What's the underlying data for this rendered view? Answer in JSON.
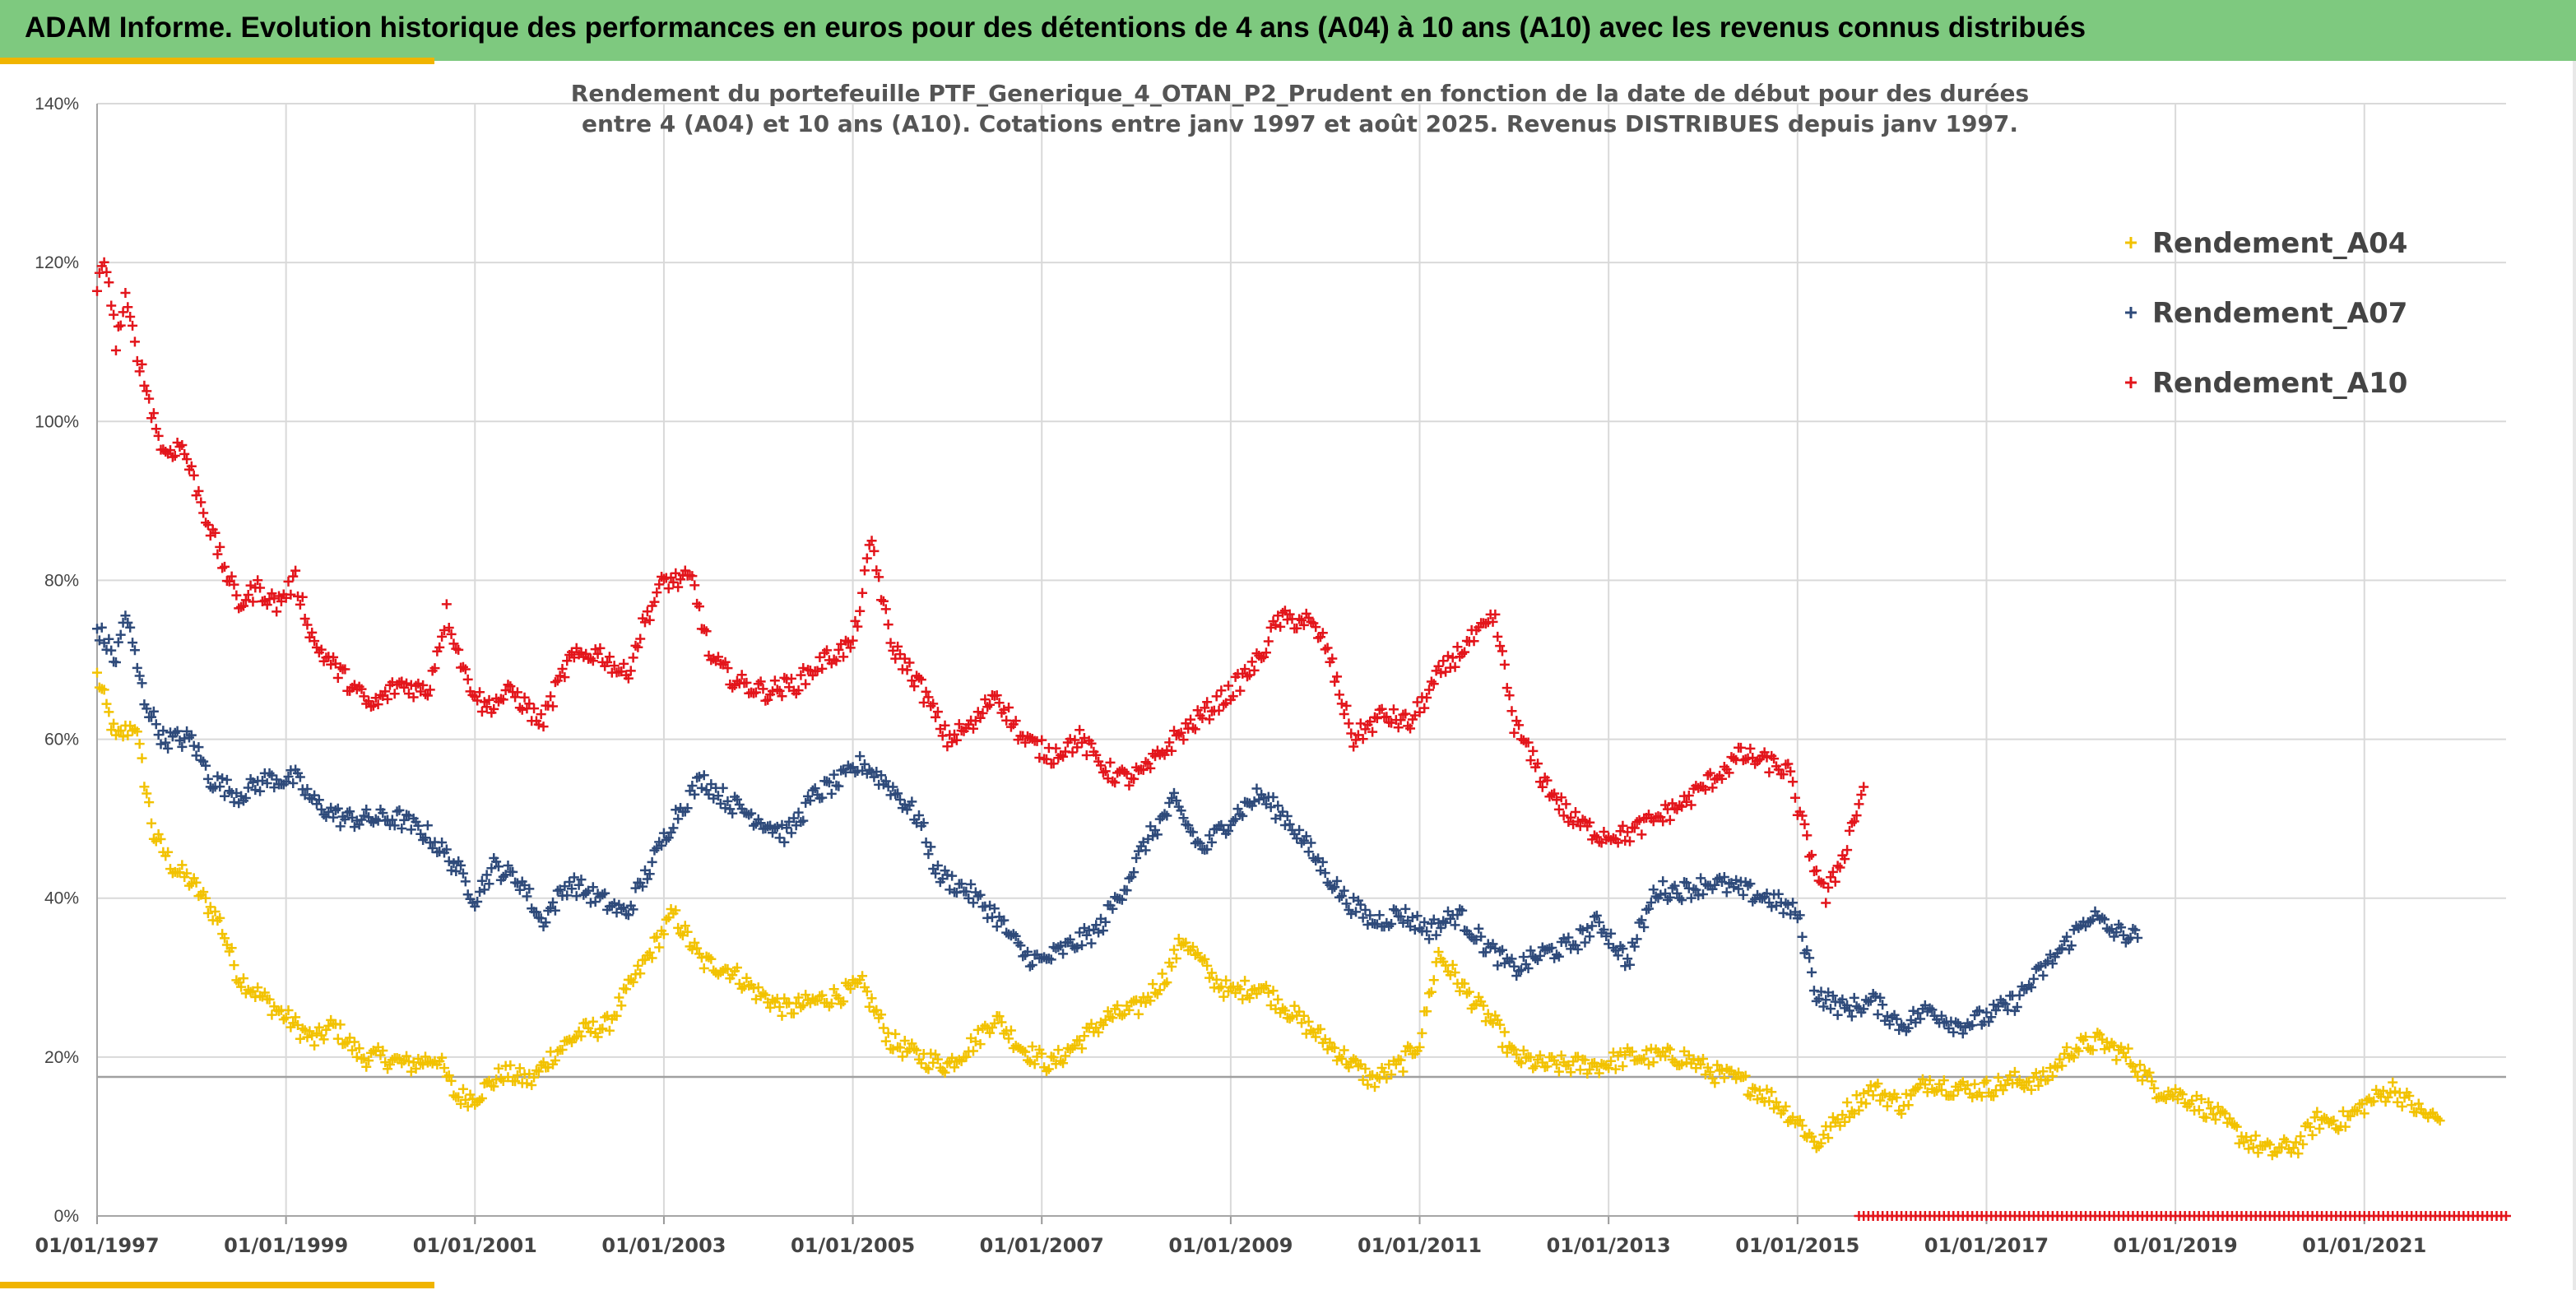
{
  "header": {
    "title": "ADAM Informe. Evolution historique des performances en euros pour des détentions de 4 ans (A04) à 10 ans (A10) avec les revenus connus distribués"
  },
  "chart_data": {
    "type": "scatter",
    "title_lines": [
      "Rendement du portefeuille PTF_Generique_4_OTAN_P2_Prudent  en fonction de la date de début pour des durées",
      "entre 4 (A04) et 10 ans (A10). Cotations entre janv 1997 et août 2025. Revenus DISTRIBUES depuis janv 1997."
    ],
    "xlabel": "",
    "ylabel": "",
    "ylim": [
      0,
      1.4
    ],
    "xlim": [
      1997.0,
      2022.5
    ],
    "y_ticks": [
      "0%",
      "20%",
      "40%",
      "60%",
      "80%",
      "100%",
      "120%",
      "140%"
    ],
    "x_ticks": [
      "01/01/1997",
      "01/01/1999",
      "01/01/2001",
      "01/01/2003",
      "01/01/2005",
      "01/01/2007",
      "01/01/2009",
      "01/01/2011",
      "01/01/2013",
      "01/01/2015",
      "01/01/2017",
      "01/01/2019",
      "01/01/2021"
    ],
    "reference_line_y": 0.175,
    "grid": true,
    "legend_position": "top-right",
    "marker": "+",
    "series": [
      {
        "name": "Rendement_A04",
        "color": "#f2c200",
        "points": [
          [
            1997.0,
            0.68
          ],
          [
            1997.2,
            0.6
          ],
          [
            1997.4,
            0.62
          ],
          [
            1997.6,
            0.48
          ],
          [
            1997.8,
            0.44
          ],
          [
            1998.0,
            0.42
          ],
          [
            1998.3,
            0.37
          ],
          [
            1998.5,
            0.3
          ],
          [
            1998.8,
            0.27
          ],
          [
            1999.0,
            0.25
          ],
          [
            1999.3,
            0.22
          ],
          [
            1999.5,
            0.24
          ],
          [
            1999.8,
            0.2
          ],
          [
            2000.0,
            0.2
          ],
          [
            2000.3,
            0.19
          ],
          [
            2000.6,
            0.2
          ],
          [
            2000.8,
            0.15
          ],
          [
            2001.0,
            0.15
          ],
          [
            2001.3,
            0.18
          ],
          [
            2001.6,
            0.17
          ],
          [
            2001.8,
            0.2
          ],
          [
            2002.1,
            0.23
          ],
          [
            2002.4,
            0.24
          ],
          [
            2002.7,
            0.3
          ],
          [
            2002.9,
            0.34
          ],
          [
            2003.1,
            0.38
          ],
          [
            2003.4,
            0.32
          ],
          [
            2003.7,
            0.31
          ],
          [
            2004.0,
            0.28
          ],
          [
            2004.3,
            0.26
          ],
          [
            2004.6,
            0.27
          ],
          [
            2004.9,
            0.28
          ],
          [
            2005.1,
            0.29
          ],
          [
            2005.4,
            0.22
          ],
          [
            2005.7,
            0.2
          ],
          [
            2006.0,
            0.19
          ],
          [
            2006.3,
            0.22
          ],
          [
            2006.5,
            0.25
          ],
          [
            2006.8,
            0.21
          ],
          [
            2007.1,
            0.19
          ],
          [
            2007.4,
            0.22
          ],
          [
            2007.7,
            0.25
          ],
          [
            2008.0,
            0.26
          ],
          [
            2008.3,
            0.3
          ],
          [
            2008.5,
            0.35
          ],
          [
            2008.8,
            0.3
          ],
          [
            2009.0,
            0.28
          ],
          [
            2009.3,
            0.29
          ],
          [
            2009.6,
            0.26
          ],
          [
            2009.9,
            0.23
          ],
          [
            2010.2,
            0.2
          ],
          [
            2010.5,
            0.17
          ],
          [
            2010.8,
            0.19
          ],
          [
            2011.0,
            0.22
          ],
          [
            2011.2,
            0.33
          ],
          [
            2011.5,
            0.28
          ],
          [
            2011.8,
            0.24
          ],
          [
            2012.0,
            0.2
          ],
          [
            2012.3,
            0.19
          ],
          [
            2012.6,
            0.19
          ],
          [
            2012.9,
            0.19
          ],
          [
            2013.2,
            0.2
          ],
          [
            2013.5,
            0.2
          ],
          [
            2013.8,
            0.2
          ],
          [
            2014.1,
            0.18
          ],
          [
            2014.4,
            0.17
          ],
          [
            2014.7,
            0.15
          ],
          [
            2015.0,
            0.12
          ],
          [
            2015.2,
            0.09
          ],
          [
            2015.5,
            0.13
          ],
          [
            2015.8,
            0.16
          ],
          [
            2016.1,
            0.14
          ],
          [
            2016.4,
            0.17
          ],
          [
            2016.7,
            0.16
          ],
          [
            2017.0,
            0.16
          ],
          [
            2017.3,
            0.17
          ],
          [
            2017.6,
            0.17
          ],
          [
            2017.9,
            0.21
          ],
          [
            2018.2,
            0.22
          ],
          [
            2018.5,
            0.2
          ],
          [
            2018.8,
            0.16
          ],
          [
            2019.1,
            0.15
          ],
          [
            2019.4,
            0.13
          ],
          [
            2019.7,
            0.1
          ],
          [
            2020.0,
            0.08
          ],
          [
            2020.3,
            0.09
          ],
          [
            2020.5,
            0.12
          ],
          [
            2020.8,
            0.12
          ],
          [
            2021.0,
            0.14
          ],
          [
            2021.3,
            0.16
          ],
          [
            2021.6,
            0.13
          ],
          [
            2021.8,
            0.12
          ]
        ]
      },
      {
        "name": "Rendement_A07",
        "color": "#2e4a7a",
        "points": [
          [
            1997.0,
            0.74
          ],
          [
            1997.2,
            0.7
          ],
          [
            1997.3,
            0.76
          ],
          [
            1997.5,
            0.65
          ],
          [
            1997.7,
            0.6
          ],
          [
            1998.0,
            0.6
          ],
          [
            1998.2,
            0.55
          ],
          [
            1998.5,
            0.53
          ],
          [
            1998.8,
            0.55
          ],
          [
            1999.1,
            0.55
          ],
          [
            1999.3,
            0.52
          ],
          [
            1999.6,
            0.5
          ],
          [
            1999.9,
            0.5
          ],
          [
            2000.2,
            0.5
          ],
          [
            2000.5,
            0.48
          ],
          [
            2000.8,
            0.44
          ],
          [
            2001.0,
            0.4
          ],
          [
            2001.2,
            0.44
          ],
          [
            2001.5,
            0.42
          ],
          [
            2001.7,
            0.37
          ],
          [
            2002.0,
            0.42
          ],
          [
            2002.3,
            0.4
          ],
          [
            2002.6,
            0.38
          ],
          [
            2002.9,
            0.45
          ],
          [
            2003.1,
            0.5
          ],
          [
            2003.4,
            0.55
          ],
          [
            2003.7,
            0.52
          ],
          [
            2004.0,
            0.5
          ],
          [
            2004.3,
            0.48
          ],
          [
            2004.6,
            0.53
          ],
          [
            2004.9,
            0.55
          ],
          [
            2005.1,
            0.57
          ],
          [
            2005.4,
            0.54
          ],
          [
            2005.7,
            0.5
          ],
          [
            2005.9,
            0.43
          ],
          [
            2006.2,
            0.41
          ],
          [
            2006.5,
            0.38
          ],
          [
            2006.8,
            0.33
          ],
          [
            2007.0,
            0.32
          ],
          [
            2007.3,
            0.34
          ],
          [
            2007.6,
            0.36
          ],
          [
            2007.9,
            0.42
          ],
          [
            2008.1,
            0.47
          ],
          [
            2008.4,
            0.52
          ],
          [
            2008.7,
            0.46
          ],
          [
            2009.0,
            0.5
          ],
          [
            2009.3,
            0.53
          ],
          [
            2009.6,
            0.5
          ],
          [
            2009.9,
            0.45
          ],
          [
            2010.2,
            0.4
          ],
          [
            2010.5,
            0.37
          ],
          [
            2010.8,
            0.38
          ],
          [
            2011.1,
            0.36
          ],
          [
            2011.4,
            0.38
          ],
          [
            2011.7,
            0.34
          ],
          [
            2012.0,
            0.31
          ],
          [
            2012.3,
            0.33
          ],
          [
            2012.6,
            0.34
          ],
          [
            2012.9,
            0.37
          ],
          [
            2013.2,
            0.32
          ],
          [
            2013.5,
            0.41
          ],
          [
            2013.8,
            0.41
          ],
          [
            2014.1,
            0.42
          ],
          [
            2014.4,
            0.41
          ],
          [
            2014.7,
            0.4
          ],
          [
            2015.0,
            0.38
          ],
          [
            2015.2,
            0.28
          ],
          [
            2015.5,
            0.26
          ],
          [
            2015.8,
            0.27
          ],
          [
            2016.1,
            0.24
          ],
          [
            2016.4,
            0.26
          ],
          [
            2016.7,
            0.24
          ],
          [
            2017.0,
            0.25
          ],
          [
            2017.3,
            0.27
          ],
          [
            2017.6,
            0.31
          ],
          [
            2017.9,
            0.35
          ],
          [
            2018.1,
            0.38
          ],
          [
            2018.3,
            0.36
          ],
          [
            2018.6,
            0.35
          ]
        ]
      },
      {
        "name": "Rendement_A10",
        "color": "#e3151b",
        "points": [
          [
            1997.0,
            1.17
          ],
          [
            1997.1,
            1.2
          ],
          [
            1997.2,
            1.1
          ],
          [
            1997.3,
            1.15
          ],
          [
            1997.5,
            1.05
          ],
          [
            1997.7,
            0.96
          ],
          [
            1997.9,
            0.97
          ],
          [
            1998.1,
            0.9
          ],
          [
            1998.3,
            0.83
          ],
          [
            1998.5,
            0.77
          ],
          [
            1998.7,
            0.79
          ],
          [
            1998.9,
            0.77
          ],
          [
            1999.1,
            0.8
          ],
          [
            1999.3,
            0.72
          ],
          [
            1999.6,
            0.68
          ],
          [
            1999.9,
            0.64
          ],
          [
            2000.2,
            0.67
          ],
          [
            2000.5,
            0.66
          ],
          [
            2000.7,
            0.76
          ],
          [
            2000.9,
            0.68
          ],
          [
            2001.1,
            0.64
          ],
          [
            2001.4,
            0.66
          ],
          [
            2001.7,
            0.62
          ],
          [
            2002.0,
            0.7
          ],
          [
            2002.3,
            0.71
          ],
          [
            2002.6,
            0.68
          ],
          [
            2002.8,
            0.75
          ],
          [
            2003.0,
            0.8
          ],
          [
            2003.3,
            0.8
          ],
          [
            2003.5,
            0.7
          ],
          [
            2003.8,
            0.67
          ],
          [
            2004.1,
            0.66
          ],
          [
            2004.4,
            0.67
          ],
          [
            2004.7,
            0.7
          ],
          [
            2005.0,
            0.72
          ],
          [
            2005.2,
            0.85
          ],
          [
            2005.4,
            0.72
          ],
          [
            2005.7,
            0.67
          ],
          [
            2006.0,
            0.6
          ],
          [
            2006.3,
            0.62
          ],
          [
            2006.5,
            0.66
          ],
          [
            2006.8,
            0.6
          ],
          [
            2007.1,
            0.58
          ],
          [
            2007.4,
            0.6
          ],
          [
            2007.7,
            0.56
          ],
          [
            2007.9,
            0.55
          ],
          [
            2008.1,
            0.56
          ],
          [
            2008.4,
            0.6
          ],
          [
            2008.7,
            0.63
          ],
          [
            2009.0,
            0.66
          ],
          [
            2009.3,
            0.7
          ],
          [
            2009.5,
            0.75
          ],
          [
            2009.8,
            0.75
          ],
          [
            2010.0,
            0.72
          ],
          [
            2010.3,
            0.6
          ],
          [
            2010.6,
            0.63
          ],
          [
            2010.9,
            0.62
          ],
          [
            2011.2,
            0.68
          ],
          [
            2011.5,
            0.72
          ],
          [
            2011.8,
            0.75
          ],
          [
            2012.0,
            0.62
          ],
          [
            2012.3,
            0.55
          ],
          [
            2012.6,
            0.5
          ],
          [
            2012.9,
            0.48
          ],
          [
            2013.2,
            0.48
          ],
          [
            2013.5,
            0.5
          ],
          [
            2013.8,
            0.52
          ],
          [
            2014.1,
            0.55
          ],
          [
            2014.4,
            0.58
          ],
          [
            2014.7,
            0.57
          ],
          [
            2014.9,
            0.56
          ],
          [
            2015.1,
            0.47
          ],
          [
            2015.3,
            0.4
          ],
          [
            2015.5,
            0.46
          ],
          [
            2015.7,
            0.54
          ]
        ]
      }
    ],
    "zero_markers": {
      "color": "#e3151b",
      "x_start": 2015.65,
      "x_end": 2022.5,
      "y": 0
    }
  },
  "legend": {
    "items": [
      {
        "label": "Rendement_A04",
        "color": "#f2c200"
      },
      {
        "label": "Rendement_A07",
        "color": "#2e4a7a"
      },
      {
        "label": "Rendement_A10",
        "color": "#e3151b"
      }
    ]
  }
}
